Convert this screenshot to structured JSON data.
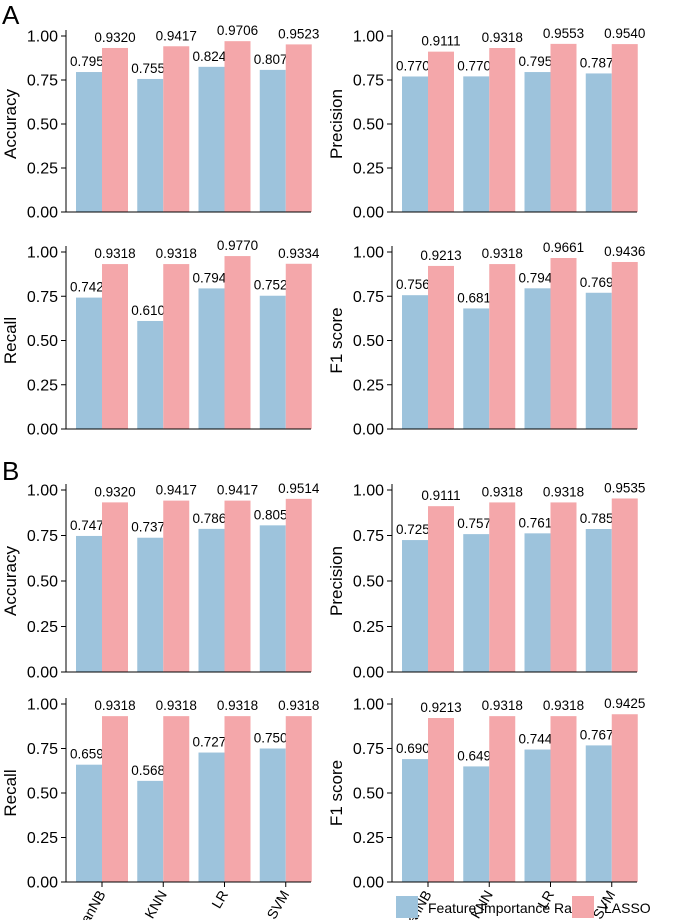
{
  "panels": [
    {
      "letter": "A",
      "letter_y": 24
    },
    {
      "letter": "B",
      "letter_y": 480
    }
  ],
  "legend": {
    "items": [
      {
        "label": "Feature Importance Rank",
        "color": "#9dc3dc"
      },
      {
        "label": "LASSO",
        "color": "#f4a7aa"
      }
    ]
  },
  "chart_data": [
    {
      "type": "bar",
      "panel": "A",
      "ylabel": "Accuracy",
      "ylim": [
        0,
        1
      ],
      "yticks": [
        "0.00",
        "0.25",
        "0.50",
        "0.75",
        "1.00"
      ],
      "categories": [
        "GaussianNB",
        "KNN",
        "LR",
        "SVM"
      ],
      "show_categories": false,
      "series": [
        {
          "name": "Feature Importance Rank",
          "values": [
            0.7953,
            0.7559,
            0.8248,
            0.8075
          ],
          "labels": [
            "0.7953",
            "0.7559",
            "0.8248",
            "0.8075"
          ]
        },
        {
          "name": "LASSO",
          "values": [
            0.932,
            0.9417,
            0.9706,
            0.9523
          ],
          "labels": [
            "0.9320",
            "0.9417",
            "0.9706",
            "0.9523"
          ]
        }
      ]
    },
    {
      "type": "bar",
      "panel": "A",
      "ylabel": "Precision",
      "ylim": [
        0,
        1
      ],
      "yticks": [
        "0.00",
        "0.25",
        "0.50",
        "0.75",
        "1.00"
      ],
      "categories": [
        "GaussianNB",
        "KNN",
        "LR",
        "SVM"
      ],
      "show_categories": false,
      "series": [
        {
          "name": "Feature Importance Rank",
          "values": [
            0.77,
            0.7705,
            0.7952,
            0.7873
          ],
          "labels": [
            "0.7700",
            "0.7705",
            "0.7952",
            "0.7873"
          ]
        },
        {
          "name": "LASSO",
          "values": [
            0.9111,
            0.9318,
            0.9553,
            0.954
          ],
          "labels": [
            "0.9111",
            "0.9318",
            "0.9553",
            "0.9540"
          ]
        }
      ]
    },
    {
      "type": "bar",
      "panel": "A",
      "ylabel": "Recall",
      "ylim": [
        0,
        1
      ],
      "yticks": [
        "0.00",
        "0.25",
        "0.50",
        "0.75",
        "1.00"
      ],
      "categories": [
        "GaussianNB",
        "KNN",
        "LR",
        "SVM"
      ],
      "show_categories": false,
      "series": [
        {
          "name": "Feature Importance Rank",
          "values": [
            0.7424,
            0.6103,
            0.7943,
            0.7529
          ],
          "labels": [
            "0.7424",
            "0.6103",
            "0.7943",
            "0.7529"
          ]
        },
        {
          "name": "LASSO",
          "values": [
            0.9318,
            0.9318,
            0.977,
            0.9334
          ],
          "labels": [
            "0.9318",
            "0.9318",
            "0.9770",
            "0.9334"
          ]
        }
      ]
    },
    {
      "type": "bar",
      "panel": "A",
      "ylabel": "F1 score",
      "ylim": [
        0,
        1
      ],
      "yticks": [
        "0.00",
        "0.25",
        "0.50",
        "0.75",
        "1.00"
      ],
      "categories": [
        "GaussianNB",
        "KNN",
        "LR",
        "SVM"
      ],
      "show_categories": false,
      "series": [
        {
          "name": "Feature Importance Rank",
          "values": [
            0.756,
            0.6811,
            0.7948,
            0.7697
          ],
          "labels": [
            "0.7560",
            "0.6811",
            "0.7948",
            "0.7697"
          ]
        },
        {
          "name": "LASSO",
          "values": [
            0.9213,
            0.9318,
            0.9661,
            0.9436
          ],
          "labels": [
            "0.9213",
            "0.9318",
            "0.9661",
            "0.9436"
          ]
        }
      ]
    },
    {
      "type": "bar",
      "panel": "B",
      "ylabel": "Accuracy",
      "ylim": [
        0,
        1
      ],
      "yticks": [
        "0.00",
        "0.25",
        "0.50",
        "0.75",
        "1.00"
      ],
      "categories": [
        "GaussianNB",
        "KNN",
        "LR",
        "SVM"
      ],
      "show_categories": false,
      "series": [
        {
          "name": "Feature Importance Rank",
          "values": [
            0.7475,
            0.7378,
            0.7864,
            0.8058
          ],
          "labels": [
            "0.7475",
            "0.7378",
            "0.7864",
            "0.8058"
          ]
        },
        {
          "name": "LASSO",
          "values": [
            0.932,
            0.9417,
            0.9417,
            0.9514
          ],
          "labels": [
            "0.9320",
            "0.9417",
            "0.9417",
            "0.9514"
          ]
        }
      ]
    },
    {
      "type": "bar",
      "panel": "B",
      "ylabel": "Precision",
      "ylim": [
        0,
        1
      ],
      "yticks": [
        "0.00",
        "0.25",
        "0.50",
        "0.75",
        "1.00"
      ],
      "categories": [
        "GaussianNB",
        "KNN",
        "LR",
        "SVM"
      ],
      "show_categories": false,
      "series": [
        {
          "name": "Feature Importance Rank",
          "values": [
            0.725,
            0.7576,
            0.7619,
            0.7857
          ],
          "labels": [
            "0.7250",
            "0.7576",
            "0.7619",
            "0.7857"
          ]
        },
        {
          "name": "LASSO",
          "values": [
            0.9111,
            0.9318,
            0.9318,
            0.9535
          ],
          "labels": [
            "0.9111",
            "0.9318",
            "0.9318",
            "0.9535"
          ]
        }
      ]
    },
    {
      "type": "bar",
      "panel": "B",
      "ylabel": "Recall",
      "ylim": [
        0,
        1
      ],
      "yticks": [
        "0.00",
        "0.25",
        "0.50",
        "0.75",
        "1.00"
      ],
      "categories": [
        "GaussianNB",
        "KNN",
        "LR",
        "SVM"
      ],
      "show_categories": true,
      "series": [
        {
          "name": "Feature Importance Rank",
          "values": [
            0.6591,
            0.5682,
            0.7273,
            0.75
          ],
          "labels": [
            "0.6591",
            "0.5682",
            "0.7273",
            "0.7500"
          ]
        },
        {
          "name": "LASSO",
          "values": [
            0.9318,
            0.9318,
            0.9318,
            0.9318
          ],
          "labels": [
            "0.9318",
            "0.9318",
            "0.9318",
            "0.9318"
          ]
        }
      ]
    },
    {
      "type": "bar",
      "panel": "B",
      "ylabel": "F1 score",
      "ylim": [
        0,
        1
      ],
      "yticks": [
        "0.00",
        "0.25",
        "0.50",
        "0.75",
        "1.00"
      ],
      "categories": [
        "GaussianNB",
        "KNN",
        "LR",
        "SVM"
      ],
      "show_categories": true,
      "series": [
        {
          "name": "Feature Importance Rank",
          "values": [
            0.6905,
            0.6494,
            0.7442,
            0.7674
          ],
          "labels": [
            "0.6905",
            "0.6494",
            "0.7442",
            "0.7674"
          ]
        },
        {
          "name": "LASSO",
          "values": [
            0.9213,
            0.9318,
            0.9318,
            0.9425
          ],
          "labels": [
            "0.9213",
            "0.9318",
            "0.9318",
            "0.9425"
          ]
        }
      ]
    }
  ]
}
